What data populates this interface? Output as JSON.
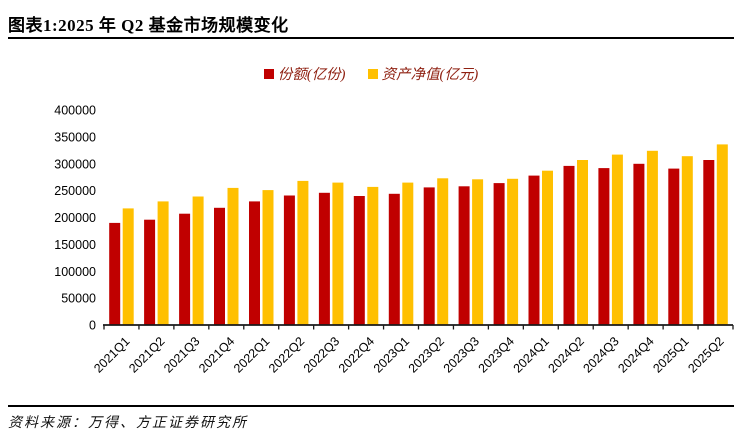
{
  "header": {
    "title": "图表1:2025 年 Q2 基金市场规模变化"
  },
  "legend": [
    {
      "label": "份额(亿份)",
      "color": "#C00000"
    },
    {
      "label": "资产净值(亿元)",
      "color": "#FFC000"
    }
  ],
  "chart_data": {
    "type": "bar",
    "title": "图表1:2025 年 Q2 基金市场规模变化",
    "categories": [
      "2021Q1",
      "2021Q2",
      "2021Q3",
      "2021Q4",
      "2022Q1",
      "2022Q2",
      "2022Q3",
      "2022Q4",
      "2023Q1",
      "2023Q2",
      "2023Q3",
      "2023Q4",
      "2024Q1",
      "2024Q2",
      "2024Q3",
      "2024Q4",
      "2025Q1",
      "2025Q2"
    ],
    "series": [
      {
        "name": "份额(亿份)",
        "color": "#C00000",
        "values": [
          190000,
          196000,
          207000,
          218000,
          230000,
          241000,
          246000,
          240000,
          244000,
          256000,
          258000,
          264000,
          278000,
          296000,
          292000,
          300000,
          291000,
          307000
        ]
      },
      {
        "name": "资产净值(亿元)",
        "color": "#FFC000",
        "values": [
          217000,
          230000,
          239000,
          255000,
          251000,
          268000,
          265000,
          257000,
          265000,
          273000,
          271000,
          272000,
          287000,
          307000,
          317000,
          324000,
          314000,
          336000
        ]
      }
    ],
    "xlabel": "",
    "ylabel": "",
    "ylim": [
      0,
      400000
    ],
    "ytick_step": 50000,
    "grid": false,
    "legend_position": "top"
  },
  "footer": {
    "source": "资料来源：万得、方正证券研究所"
  }
}
